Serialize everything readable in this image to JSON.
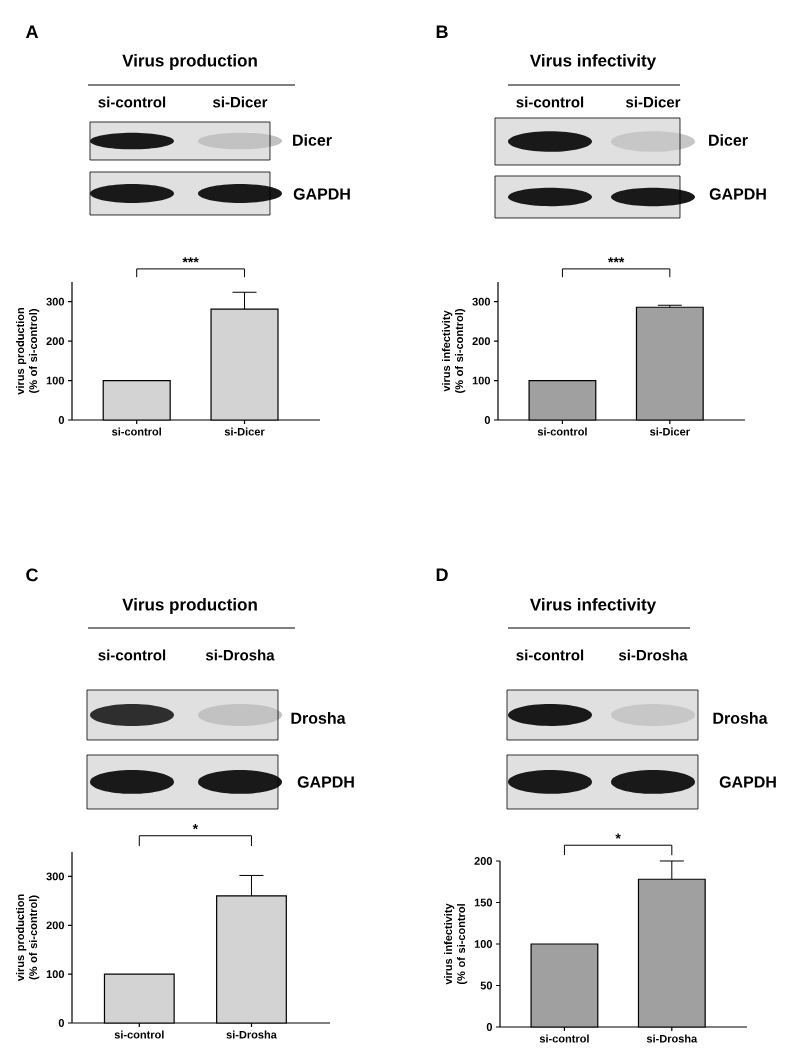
{
  "chart_data": [
    {
      "type": "bar",
      "title": "Virus production",
      "ylabel": "virus production (% of si-control)",
      "categories": [
        "si-control",
        "si-Dicer"
      ],
      "values": [
        100,
        281
      ],
      "errors": [
        null,
        43
      ],
      "color": "#d3d3d3",
      "ylim": [
        0,
        350
      ],
      "yticks": [
        0,
        100,
        200,
        300
      ],
      "annotations": [
        "A",
        "si-control",
        "si-Dicer",
        "Dicer",
        "GAPDH",
        "***"
      ]
    },
    {
      "type": "bar",
      "title": "Virus infectivity",
      "ylabel": "virus infectivity (% of si-control)",
      "categories": [
        "si-control",
        "si-Dicer"
      ],
      "values": [
        100,
        286
      ],
      "errors": [
        null,
        5
      ],
      "color": "#a0a0a0",
      "ylim": [
        0,
        350
      ],
      "yticks": [
        0,
        100,
        200,
        300
      ],
      "annotations": [
        "B",
        "si-control",
        "si-Dicer",
        "Dicer",
        "GAPDH",
        "***"
      ]
    },
    {
      "type": "bar",
      "title": "Virus production",
      "ylabel": "virus production (% of si-control)",
      "categories": [
        "si-control",
        "si-Drosha"
      ],
      "values": [
        100,
        260
      ],
      "errors": [
        null,
        42
      ],
      "color": "#d3d3d3",
      "ylim": [
        0,
        350
      ],
      "yticks": [
        0,
        100,
        200,
        300
      ],
      "annotations": [
        "C",
        "si-control",
        "si-Drosha",
        "Drosha",
        "GAPDH",
        "*"
      ]
    },
    {
      "type": "bar",
      "title": "Virus infectivity",
      "ylabel": "virus infectivity (% of si-control",
      "categories": [
        "si-control",
        "si-Drosha"
      ],
      "values": [
        100,
        178
      ],
      "errors": [
        null,
        22
      ],
      "color": "#a0a0a0",
      "ylim": [
        0,
        200
      ],
      "yticks": [
        0,
        50,
        100,
        150,
        200
      ],
      "annotations": [
        "D",
        "si-control",
        "si-Drosha",
        "Drosha",
        "GAPDH",
        "*"
      ]
    }
  ]
}
